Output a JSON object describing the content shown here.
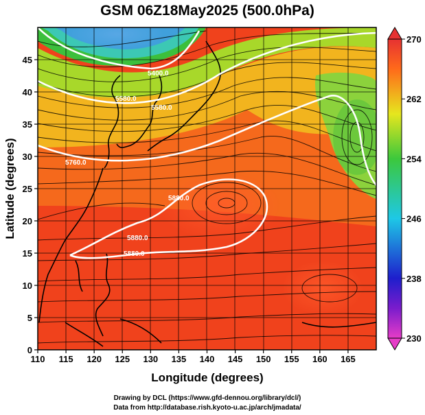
{
  "title": "GSM 06Z18May2025 (500.0hPa)",
  "xlabel": "Longitude (degrees)",
  "ylabel": "Latitude  (degrees)",
  "x_ticks": [
    "110",
    "115",
    "120",
    "125",
    "130",
    "135",
    "140",
    "145",
    "150",
    "155",
    "160",
    "165"
  ],
  "y_ticks": [
    "0",
    "5",
    "10",
    "15",
    "20",
    "25",
    "30",
    "35",
    "40",
    "45"
  ],
  "colorbar_ticks": [
    "230",
    "238",
    "246",
    "254",
    "262",
    "270"
  ],
  "credits": {
    "line1": "Drawing by DCL (https://www.gfd-dennou.org/library/dcl/)",
    "line2": "Data from http://database.rish.kyoto-u.ac.jp/arch/jmadata/"
  },
  "contour_labels": [
    "5400.0",
    "5580.0",
    "5580.0",
    "5760.0",
    "5880.0",
    "5880.0",
    "5880.0"
  ],
  "chart_data": {
    "type": "heatmap",
    "title": "GSM 06Z18May2025 (500.0hPa)",
    "xlabel": "Longitude (degrees)",
    "ylabel": "Latitude  (degrees)",
    "xlim": [
      110,
      170
    ],
    "ylim": [
      0,
      50
    ],
    "x_ticks": [
      110,
      115,
      120,
      125,
      130,
      135,
      140,
      145,
      150,
      155,
      160,
      165
    ],
    "y_ticks": [
      0,
      5,
      10,
      15,
      20,
      25,
      30,
      35,
      40,
      45
    ],
    "colorbar": {
      "min": 230,
      "max": 270,
      "ticks": [
        230,
        238,
        246,
        254,
        262,
        270
      ],
      "extend": "both"
    },
    "overlays": [
      "geopotential height contours (white)",
      "streamlines (black)",
      "coastlines (black)"
    ],
    "grid": true
  }
}
